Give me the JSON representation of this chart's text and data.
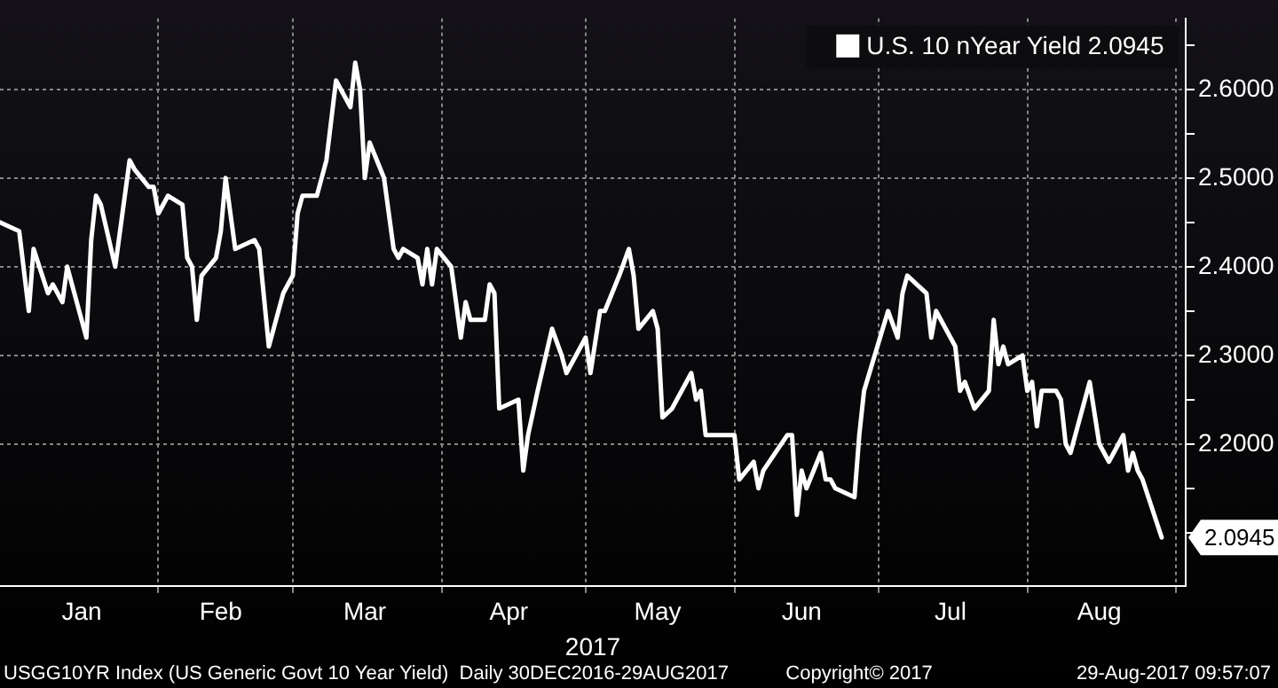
{
  "chart_data": {
    "type": "line",
    "xlabel": "2017",
    "legend": "top right",
    "grid": true,
    "marker": "none",
    "line_style": "solid",
    "xlim": [
      "2016-12-30",
      "2017-09-03"
    ],
    "xticks": [
      {
        "value": "2017-01-16",
        "label": "Jan"
      },
      {
        "value": "2017-02-01",
        "label": null
      },
      {
        "value": "2017-02-14",
        "label": "Feb"
      },
      {
        "value": "2017-03-01",
        "label": null
      },
      {
        "value": "2017-03-16",
        "label": "Mar"
      },
      {
        "value": "2017-04-01",
        "label": null
      },
      {
        "value": "2017-04-15",
        "label": "Apr"
      },
      {
        "value": "2017-05-01",
        "label": null
      },
      {
        "value": "2017-05-16",
        "label": "May"
      },
      {
        "value": "2017-06-01",
        "label": null
      },
      {
        "value": "2017-06-15",
        "label": "Jun"
      },
      {
        "value": "2017-07-01",
        "label": null
      },
      {
        "value": "2017-07-16",
        "label": "Jul"
      },
      {
        "value": "2017-08-01",
        "label": null
      },
      {
        "value": "2017-08-16",
        "label": "Aug"
      },
      {
        "value": "2017-09-01",
        "label": null
      }
    ],
    "ylim": [
      2.04,
      2.68
    ],
    "yticks": [
      {
        "value": 2.1,
        "label": null
      },
      {
        "value": 2.15,
        "label": null
      },
      {
        "value": 2.2,
        "label": "2.2000"
      },
      {
        "value": 2.25,
        "label": null
      },
      {
        "value": 2.3,
        "label": "2.3000"
      },
      {
        "value": 2.35,
        "label": null
      },
      {
        "value": 2.4,
        "label": "2.4000"
      },
      {
        "value": 2.45,
        "label": null
      },
      {
        "value": 2.5,
        "label": "2.5000"
      },
      {
        "value": 2.55,
        "label": null
      },
      {
        "value": 2.6,
        "label": "2.6000"
      },
      {
        "value": 2.65,
        "label": null
      }
    ],
    "x": [
      "2016-12-30",
      "2017-01-03",
      "2017-01-05",
      "2017-01-06",
      "2017-01-09",
      "2017-01-10",
      "2017-01-12",
      "2017-01-13",
      "2017-01-17",
      "2017-01-18",
      "2017-01-19",
      "2017-01-20",
      "2017-01-23",
      "2017-01-26",
      "2017-01-27",
      "2017-01-30",
      "2017-01-31",
      "2017-02-01",
      "2017-02-03",
      "2017-02-06",
      "2017-02-07",
      "2017-02-08",
      "2017-02-09",
      "2017-02-10",
      "2017-02-13",
      "2017-02-14",
      "2017-02-15",
      "2017-02-17",
      "2017-02-21",
      "2017-02-22",
      "2017-02-24",
      "2017-02-27",
      "2017-03-01",
      "2017-03-02",
      "2017-03-03",
      "2017-03-06",
      "2017-03-08",
      "2017-03-10",
      "2017-03-13",
      "2017-03-14",
      "2017-03-15",
      "2017-03-16",
      "2017-03-17",
      "2017-03-20",
      "2017-03-22",
      "2017-03-23",
      "2017-03-24",
      "2017-03-27",
      "2017-03-28",
      "2017-03-29",
      "2017-03-30",
      "2017-03-31",
      "2017-04-03",
      "2017-04-05",
      "2017-04-06",
      "2017-04-07",
      "2017-04-10",
      "2017-04-11",
      "2017-04-12",
      "2017-04-13",
      "2017-04-17",
      "2017-04-18",
      "2017-04-19",
      "2017-04-21",
      "2017-04-24",
      "2017-04-26",
      "2017-04-27",
      "2017-05-01",
      "2017-05-02",
      "2017-05-04",
      "2017-05-05",
      "2017-05-08",
      "2017-05-10",
      "2017-05-11",
      "2017-05-12",
      "2017-05-15",
      "2017-05-16",
      "2017-05-17",
      "2017-05-19",
      "2017-05-23",
      "2017-05-24",
      "2017-05-25",
      "2017-05-26",
      "2017-05-31",
      "2017-06-01",
      "2017-06-02",
      "2017-06-05",
      "2017-06-06",
      "2017-06-07",
      "2017-06-12",
      "2017-06-13",
      "2017-06-14",
      "2017-06-15",
      "2017-06-16",
      "2017-06-19",
      "2017-06-20",
      "2017-06-21",
      "2017-06-22",
      "2017-06-26",
      "2017-06-27",
      "2017-06-28",
      "2017-07-03",
      "2017-07-05",
      "2017-07-06",
      "2017-07-07",
      "2017-07-11",
      "2017-07-12",
      "2017-07-13",
      "2017-07-17",
      "2017-07-18",
      "2017-07-19",
      "2017-07-21",
      "2017-07-24",
      "2017-07-25",
      "2017-07-26",
      "2017-07-27",
      "2017-07-28",
      "2017-07-31",
      "2017-08-01",
      "2017-08-02",
      "2017-08-03",
      "2017-08-04",
      "2017-08-07",
      "2017-08-08",
      "2017-08-09",
      "2017-08-10",
      "2017-08-14",
      "2017-08-16",
      "2017-08-17",
      "2017-08-18",
      "2017-08-21",
      "2017-08-22",
      "2017-08-23",
      "2017-08-24",
      "2017-08-25",
      "2017-08-29"
    ],
    "series": [
      {
        "name": "U.S. 10 nYear Yield 2.0945",
        "color": "#ffffff",
        "values": [
          2.45,
          2.44,
          2.35,
          2.42,
          2.37,
          2.38,
          2.36,
          2.4,
          2.32,
          2.43,
          2.48,
          2.47,
          2.4,
          2.52,
          2.51,
          2.49,
          2.49,
          2.46,
          2.48,
          2.47,
          2.41,
          2.4,
          2.34,
          2.39,
          2.41,
          2.44,
          2.5,
          2.42,
          2.43,
          2.42,
          2.31,
          2.37,
          2.39,
          2.46,
          2.48,
          2.48,
          2.52,
          2.61,
          2.58,
          2.63,
          2.6,
          2.5,
          2.54,
          2.5,
          2.42,
          2.41,
          2.42,
          2.41,
          2.38,
          2.42,
          2.38,
          2.42,
          2.4,
          2.32,
          2.36,
          2.34,
          2.34,
          2.38,
          2.37,
          2.24,
          2.25,
          2.17,
          2.21,
          2.26,
          2.33,
          2.3,
          2.28,
          2.32,
          2.28,
          2.35,
          2.35,
          2.39,
          2.42,
          2.39,
          2.33,
          2.35,
          2.33,
          2.23,
          2.24,
          2.28,
          2.25,
          2.26,
          2.21,
          2.21,
          2.21,
          2.16,
          2.18,
          2.15,
          2.17,
          2.21,
          2.21,
          2.12,
          2.17,
          2.15,
          2.19,
          2.16,
          2.16,
          2.15,
          2.14,
          2.21,
          2.26,
          2.35,
          2.32,
          2.37,
          2.39,
          2.37,
          2.32,
          2.35,
          2.31,
          2.26,
          2.27,
          2.24,
          2.26,
          2.34,
          2.29,
          2.31,
          2.29,
          2.3,
          2.26,
          2.27,
          2.22,
          2.26,
          2.26,
          2.25,
          2.2,
          2.19,
          2.27,
          2.2,
          2.19,
          2.18,
          2.21,
          2.17,
          2.19,
          2.17,
          2.16,
          2.0945
        ]
      }
    ],
    "annotations": [
      {
        "text": "2.0945",
        "x": "2017-08-29",
        "y": 2.0945
      },
      "USGG10YR Index (US Generic Govt 10 Year Yield)  Daily 30DEC2016-29AUG2017",
      "Copyright© 2017",
      "29-Aug-2017 09:57:07"
    ]
  }
}
